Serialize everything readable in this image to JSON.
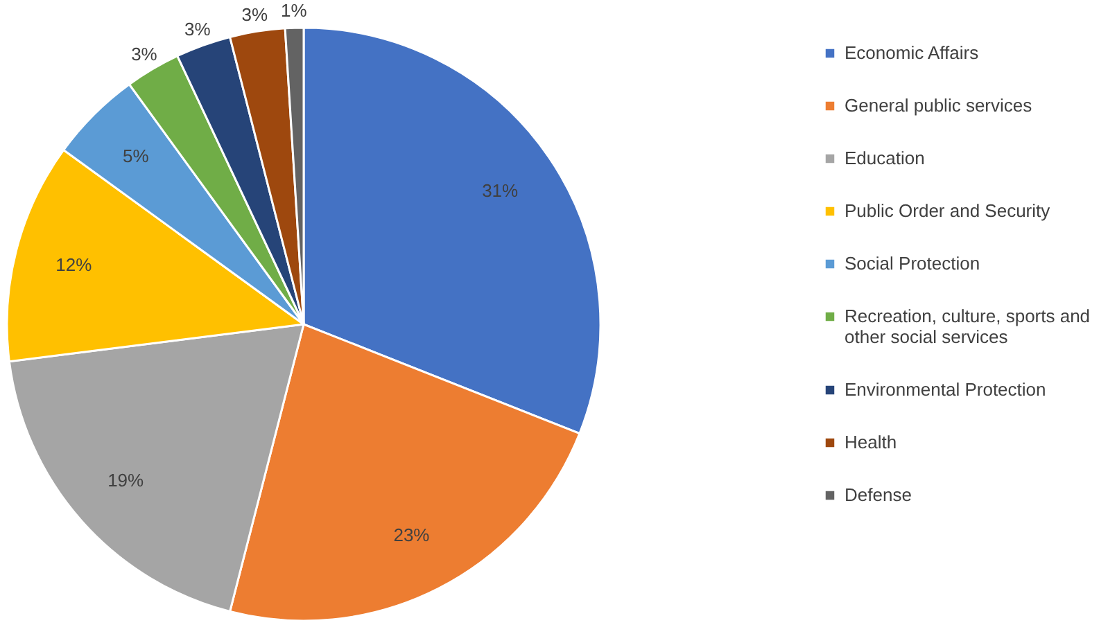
{
  "chart_data": {
    "type": "pie",
    "categories": [
      "Economic Affairs",
      "General public services",
      "Education",
      "Public Order and Security",
      "Social Protection",
      "Recreation, culture, sports and other social services",
      "Environmental Protection",
      "Health",
      "Defense"
    ],
    "values": [
      31,
      23,
      19,
      12,
      5,
      3,
      3,
      3,
      1
    ],
    "colors": [
      "#4472c4",
      "#ed7d31",
      "#a5a5a5",
      "#ffc000",
      "#5b9bd5",
      "#70ad47",
      "#264478",
      "#9e480e",
      "#636363"
    ],
    "value_labels": [
      "31%",
      "23%",
      "19%",
      "12%",
      "5%",
      "3%",
      "3%",
      "3%",
      "1%"
    ],
    "legend": "right"
  }
}
